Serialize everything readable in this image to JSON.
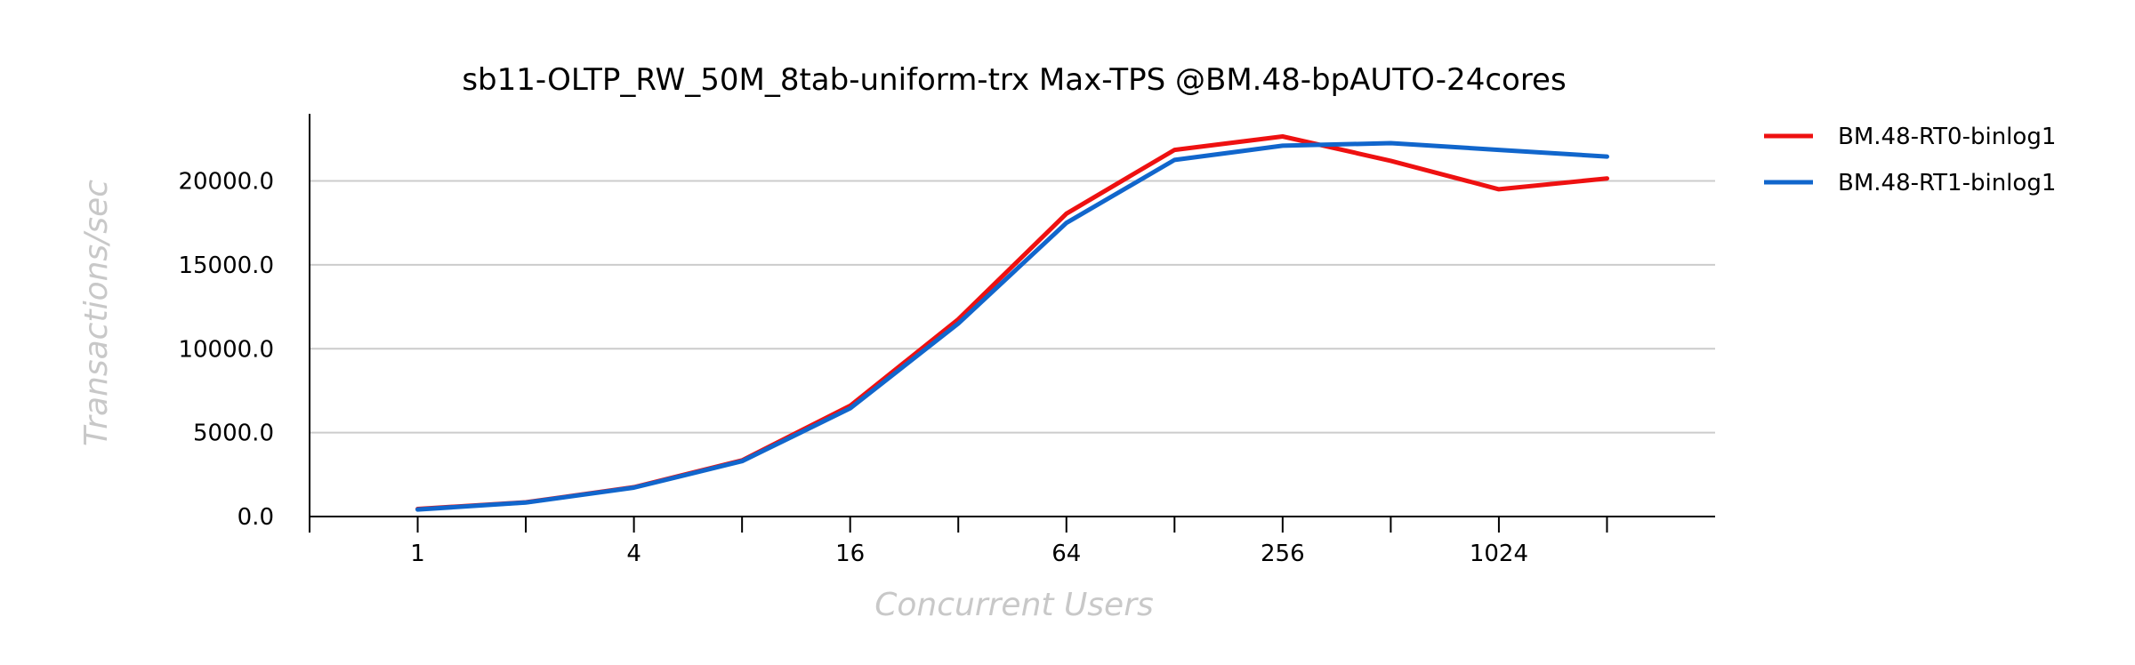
{
  "chart_data": {
    "type": "line",
    "title": "sb11-OLTP_RW_50M_8tab-uniform-trx Max-TPS @BM.48-bpAUTO-24cores",
    "xlabel": "Concurrent Users",
    "ylabel": "Transactions/sec",
    "x": [
      1,
      2,
      4,
      8,
      16,
      32,
      64,
      128,
      256,
      512,
      1024,
      2048
    ],
    "x_tick_labels": [
      "1",
      "4",
      "16",
      "64",
      "256",
      "1024"
    ],
    "x_tick_values": [
      1,
      4,
      16,
      64,
      256,
      1024
    ],
    "xlim": [
      0.5,
      4096
    ],
    "x_scale": "log2",
    "ylim": [
      0,
      24000
    ],
    "y_ticks": [
      0,
      5000,
      10000,
      15000,
      20000
    ],
    "y_tick_labels": [
      "0.0",
      "5000.0",
      "10000.0",
      "15000.0",
      "20000.0"
    ],
    "grid": true,
    "legend_position": "top-right",
    "series": [
      {
        "name": "BM.48-RT0-binlog1",
        "color": "#ee1111",
        "values": [
          450,
          850,
          1750,
          3350,
          6600,
          11750,
          18050,
          21850,
          22650,
          21200,
          19500,
          20150
        ]
      },
      {
        "name": "BM.48-RT1-binlog1",
        "color": "#1166cc",
        "values": [
          420,
          830,
          1720,
          3300,
          6450,
          11500,
          17500,
          21250,
          22100,
          22250,
          21850,
          21450
        ]
      }
    ]
  }
}
